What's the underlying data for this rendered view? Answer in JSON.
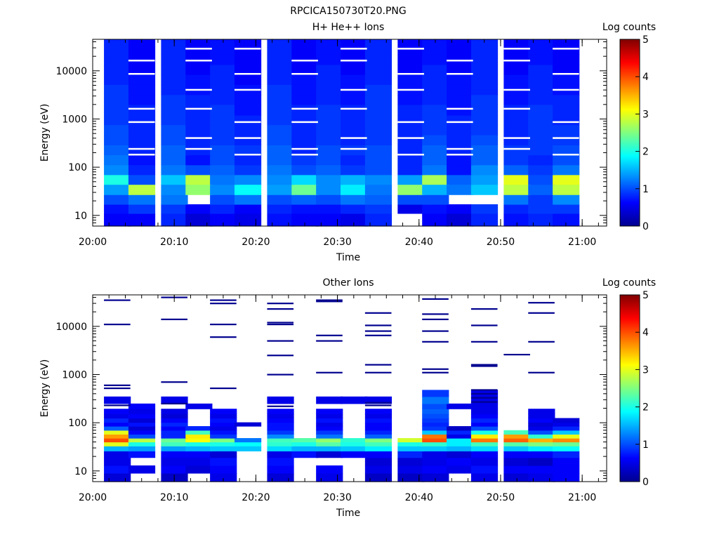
{
  "figure_title": "RPCICA150730T20.PNG",
  "colorbar_colors": [
    "#00008f",
    "#0000ff",
    "#0080ff",
    "#00ffff",
    "#80ff80",
    "#ffff00",
    "#ff8000",
    "#ff0000",
    "#800000"
  ],
  "chart_data": [
    {
      "type": "heatmap",
      "title": "H+ He++ Ions",
      "xlabel": "Time",
      "ylabel": "Energy (eV)",
      "xticks": [
        "20:00",
        "20:10",
        "20:20",
        "20:30",
        "20:40",
        "20:50",
        "21:00"
      ],
      "xlim": [
        "20:00",
        "21:03"
      ],
      "yticks": [
        "10",
        "100",
        "1000",
        "10000"
      ],
      "ylim": [
        6,
        45000
      ],
      "yscale": "log",
      "time_bins": [
        "20:03",
        "20:06",
        "20:10",
        "20:13",
        "20:16",
        "20:19",
        "20:23",
        "20:26",
        "20:29",
        "20:32",
        "20:35",
        "20:39",
        "20:42",
        "20:45",
        "20:48",
        "20:52",
        "20:55",
        "20:58"
      ],
      "energy_bin_edges": [
        6,
        11,
        17,
        27,
        44,
        70,
        112,
        180,
        290,
        470,
        760,
        1200,
        2000,
        3200,
        5200,
        8400,
        13500,
        22000,
        45000
      ],
      "counts": [
        [
          0.6,
          0.6,
          0.8,
          0.4,
          0.6,
          0.5,
          0.7,
          0.6,
          0.6,
          0.5,
          0.8,
          0.0,
          0.6,
          0.4,
          0.8,
          0.7,
          0.8,
          0.7
        ],
        [
          0.7,
          0.9,
          0.9,
          0.6,
          0.8,
          0.6,
          0.8,
          0.7,
          0.7,
          0.8,
          0.9,
          0.5,
          0.7,
          0.6,
          0.9,
          0.8,
          0.9,
          0.9
        ],
        [
          1.0,
          1.2,
          1.2,
          0.0,
          1.0,
          1.2,
          1.0,
          1.1,
          1.0,
          1.2,
          1.1,
          1.0,
          1.0,
          0.0,
          0.0,
          1.2,
          0.9,
          1.3
        ],
        [
          1.4,
          2.8,
          1.3,
          2.6,
          1.3,
          1.9,
          1.4,
          2.4,
          1.3,
          1.8,
          1.2,
          2.6,
          1.5,
          1.2,
          1.6,
          2.8,
          1.1,
          2.8
        ],
        [
          2.0,
          1.0,
          1.6,
          2.8,
          1.2,
          1.3,
          1.3,
          1.7,
          1.3,
          1.5,
          1.3,
          1.4,
          2.7,
          1.1,
          1.4,
          3.0,
          1.0,
          3.0
        ],
        [
          1.3,
          0.8,
          1.2,
          1.0,
          1.1,
          0.9,
          1.2,
          1.0,
          1.1,
          0.9,
          1.0,
          0.8,
          1.2,
          0.7,
          1.3,
          1.1,
          0.9,
          1.2
        ],
        [
          1.2,
          0.7,
          1.1,
          0.7,
          1.0,
          0.8,
          1.1,
          0.9,
          1.0,
          0.8,
          1.0,
          0.8,
          1.1,
          0.7,
          1.1,
          0.9,
          0.8,
          1.0
        ],
        [
          1.1,
          0.8,
          1.1,
          0.8,
          1.0,
          0.9,
          1.1,
          0.8,
          1.0,
          0.9,
          1.0,
          0.8,
          1.1,
          0.8,
          1.1,
          0.9,
          0.9,
          1.0
        ],
        [
          1.0,
          0.8,
          1.0,
          0.8,
          0.9,
          0.8,
          1.0,
          0.8,
          0.9,
          0.8,
          0.9,
          0.8,
          1.0,
          0.8,
          1.0,
          0.8,
          0.9,
          0.9
        ],
        [
          1.0,
          0.8,
          1.0,
          0.8,
          0.9,
          0.8,
          1.0,
          0.8,
          0.9,
          0.8,
          0.9,
          0.8,
          0.9,
          0.8,
          0.9,
          0.8,
          0.9,
          0.9
        ],
        [
          0.9,
          0.8,
          0.9,
          0.8,
          0.9,
          0.8,
          0.9,
          0.8,
          0.9,
          0.8,
          0.9,
          0.8,
          0.9,
          0.8,
          0.9,
          0.8,
          0.9,
          0.8
        ],
        [
          0.9,
          0.8,
          0.9,
          0.8,
          0.9,
          0.7,
          0.9,
          0.8,
          0.9,
          0.8,
          0.9,
          0.8,
          0.9,
          0.7,
          0.9,
          0.8,
          0.9,
          0.8
        ],
        [
          0.9,
          0.7,
          0.9,
          0.8,
          0.8,
          0.7,
          0.9,
          0.7,
          0.8,
          0.7,
          0.9,
          0.7,
          0.8,
          0.7,
          0.9,
          0.7,
          0.8,
          0.8
        ],
        [
          0.9,
          0.7,
          0.8,
          0.7,
          0.8,
          0.7,
          0.9,
          0.7,
          0.8,
          0.7,
          0.9,
          0.7,
          0.8,
          0.7,
          0.8,
          0.7,
          0.8,
          0.7
        ],
        [
          0.8,
          0.7,
          0.8,
          0.7,
          0.8,
          0.6,
          0.8,
          0.7,
          0.8,
          0.7,
          0.8,
          0.7,
          0.8,
          0.7,
          0.8,
          0.7,
          0.8,
          0.7
        ],
        [
          0.8,
          0.6,
          0.8,
          0.6,
          0.8,
          0.6,
          0.8,
          0.6,
          0.8,
          0.6,
          0.8,
          0.6,
          0.8,
          0.6,
          0.8,
          0.6,
          0.8,
          0.6
        ],
        [
          0.8,
          0.6,
          0.8,
          0.6,
          0.7,
          0.6,
          0.8,
          0.6,
          0.7,
          0.6,
          0.8,
          0.6,
          0.7,
          0.6,
          0.8,
          0.6,
          0.7,
          0.6
        ],
        [
          0.8,
          0.6,
          0.8,
          0.6,
          0.7,
          0.6,
          0.8,
          0.6,
          0.7,
          0.6,
          0.8,
          0.6,
          0.7,
          0.6,
          0.8,
          0.6,
          0.7,
          0.6
        ]
      ],
      "colorbar_label": "Log counts",
      "colorbar_ticks": [
        "0",
        "1",
        "2",
        "3",
        "4",
        "5"
      ],
      "colorbar_range": [
        0,
        5
      ]
    },
    {
      "type": "heatmap",
      "title": "Other Ions",
      "xlabel": "Time",
      "ylabel": "Energy (eV)",
      "xticks": [
        "20:00",
        "20:10",
        "20:20",
        "20:30",
        "20:40",
        "20:50",
        "21:00"
      ],
      "xlim": [
        "20:00",
        "21:03"
      ],
      "yticks": [
        "10",
        "100",
        "1000",
        "10000"
      ],
      "ylim": [
        6,
        45000
      ],
      "yscale": "log",
      "time_bins": [
        "20:03",
        "20:06",
        "20:10",
        "20:13",
        "20:16",
        "20:19",
        "20:23",
        "20:26",
        "20:29",
        "20:32",
        "20:35",
        "20:39",
        "20:42",
        "20:45",
        "20:48",
        "20:52",
        "20:55",
        "20:58"
      ],
      "energy_bin_edges": [
        6,
        9,
        13,
        19,
        26,
        33,
        40,
        48,
        58,
        70,
        85,
        102,
        125,
        155,
        195,
        250,
        350,
        480
      ],
      "counts": [
        [
          0.4,
          0.0,
          0.3,
          0.0,
          0.5,
          0.0,
          0.4,
          0.0,
          0.5,
          0.0,
          0.3,
          0.3,
          0.4,
          0.0,
          0.5,
          0.4,
          0.5,
          0.6
        ],
        [
          0.7,
          0.5,
          0.6,
          0.4,
          0.6,
          0.0,
          0.6,
          0.0,
          0.6,
          0.0,
          0.5,
          0.5,
          0.6,
          0.5,
          0.7,
          0.6,
          0.6,
          0.6
        ],
        [
          0.5,
          0.0,
          0.5,
          0.5,
          0.7,
          0.0,
          0.7,
          0.0,
          0.0,
          0.0,
          0.4,
          0.4,
          0.5,
          0.6,
          0.5,
          0.4,
          0.3,
          0.6
        ],
        [
          0.5,
          0.7,
          0.6,
          0.6,
          0.4,
          0.0,
          0.5,
          0.7,
          0.4,
          0.6,
          0.6,
          0.8,
          0.5,
          0.4,
          0.6,
          0.6,
          0.6,
          0.8
        ],
        [
          1.5,
          1.4,
          1.4,
          1.5,
          1.6,
          1.6,
          1.7,
          1.5,
          1.5,
          1.6,
          1.8,
          1.6,
          1.6,
          1.5,
          1.7,
          1.6,
          1.8,
          1.9
        ],
        [
          3.0,
          2.0,
          2.2,
          2.0,
          2.0,
          1.9,
          2.1,
          2.0,
          2.3,
          2.0,
          2.2,
          2.0,
          2.1,
          1.8,
          2.2,
          2.3,
          2.5,
          2.4
        ],
        [
          4.0,
          2.8,
          2.4,
          3.1,
          2.5,
          1.2,
          2.2,
          2.3,
          2.6,
          2.1,
          2.5,
          2.9,
          4.0,
          1.8,
          3.8,
          3.9,
          3.5,
          3.7
        ],
        [
          3.6,
          1.0,
          0.8,
          3.2,
          0.9,
          0.0,
          1.3,
          0.0,
          1.2,
          0.0,
          1.1,
          0.0,
          3.8,
          0.5,
          3.2,
          3.6,
          2.1,
          3.0
        ],
        [
          3.0,
          0.6,
          0.8,
          2.2,
          0.7,
          0.0,
          0.9,
          0.0,
          0.9,
          0.0,
          0.8,
          0.0,
          1.6,
          0.8,
          2.0,
          2.2,
          1.0,
          1.6
        ],
        [
          1.1,
          0.4,
          0.6,
          0.8,
          0.5,
          0.0,
          0.7,
          0.0,
          0.6,
          0.0,
          0.6,
          0.0,
          0.9,
          0.3,
          1.0,
          0.0,
          0.5,
          0.8
        ],
        [
          0.6,
          0.7,
          0.8,
          0.0,
          0.6,
          0.4,
          0.7,
          0.0,
          0.5,
          0.0,
          0.6,
          0.0,
          0.8,
          0.0,
          0.6,
          0.0,
          0.4,
          0.5
        ],
        [
          0.8,
          0.4,
          0.6,
          0.0,
          0.7,
          0.0,
          0.6,
          0.0,
          0.7,
          0.0,
          0.7,
          0.0,
          0.9,
          0.0,
          0.8,
          0.0,
          0.6,
          0.4
        ],
        [
          0.5,
          0.6,
          0.4,
          0.0,
          0.5,
          0.0,
          0.5,
          0.0,
          0.5,
          0.0,
          0.5,
          0.0,
          1.0,
          0.0,
          0.6,
          0.0,
          0.5,
          0.0
        ],
        [
          0.6,
          0.5,
          0.5,
          0.0,
          0.6,
          0.0,
          0.6,
          0.0,
          0.6,
          0.0,
          0.6,
          0.0,
          1.1,
          0.0,
          0.5,
          0.0,
          0.5,
          0.0
        ],
        [
          0.0,
          0.6,
          0.0,
          0.5,
          0.0,
          0.0,
          0.0,
          0.0,
          0.0,
          0.0,
          0.0,
          0.0,
          1.0,
          0.5,
          0.5,
          0.0,
          0.0,
          0.0
        ],
        [
          0.5,
          0.0,
          0.5,
          0.0,
          0.0,
          0.0,
          0.5,
          0.0,
          0.5,
          0.5,
          0.5,
          0.0,
          1.2,
          0.0,
          0.5,
          0.0,
          0.0,
          0.0
        ],
        [
          0.0,
          0.0,
          0.0,
          0.0,
          0.0,
          0.0,
          0.0,
          0.0,
          0.0,
          0.0,
          0.0,
          0.0,
          0.9,
          0.0,
          0.5,
          0.0,
          0.0,
          0.0
        ]
      ],
      "sparse_lines": [
        {
          "time_bin": "20:03",
          "energies": [
            35000,
            11000,
            600,
            520,
            230
          ]
        },
        {
          "time_bin": "20:10",
          "energies": [
            40000,
            14000,
            700,
            250
          ]
        },
        {
          "time_bin": "20:16",
          "energies": [
            35000,
            30000,
            11000,
            6000,
            520
          ]
        },
        {
          "time_bin": "20:23",
          "energies": [
            30000,
            23000,
            12000,
            11000,
            5000,
            2500,
            1000,
            220
          ]
        },
        {
          "time_bin": "20:29",
          "energies": [
            35000,
            33000,
            6500,
            5000,
            1100
          ]
        },
        {
          "time_bin": "20:35",
          "energies": [
            19000,
            10500,
            8000,
            6500,
            1600,
            1100,
            260,
            230
          ]
        },
        {
          "time_bin": "20:42",
          "energies": [
            37000,
            18000,
            14000,
            8000,
            4800,
            1300,
            1100
          ]
        },
        {
          "time_bin": "20:48",
          "energies": [
            23000,
            10500,
            4800,
            1600,
            1500,
            480,
            400,
            330,
            270
          ]
        },
        {
          "time_bin": "20:52",
          "energies": [
            2600
          ]
        },
        {
          "time_bin": "20:55",
          "energies": [
            31000,
            19000,
            4800,
            1100
          ]
        }
      ],
      "colorbar_label": "Log counts",
      "colorbar_ticks": [
        "0",
        "1",
        "2",
        "3",
        "4",
        "5"
      ],
      "colorbar_range": [
        0,
        5
      ]
    }
  ]
}
